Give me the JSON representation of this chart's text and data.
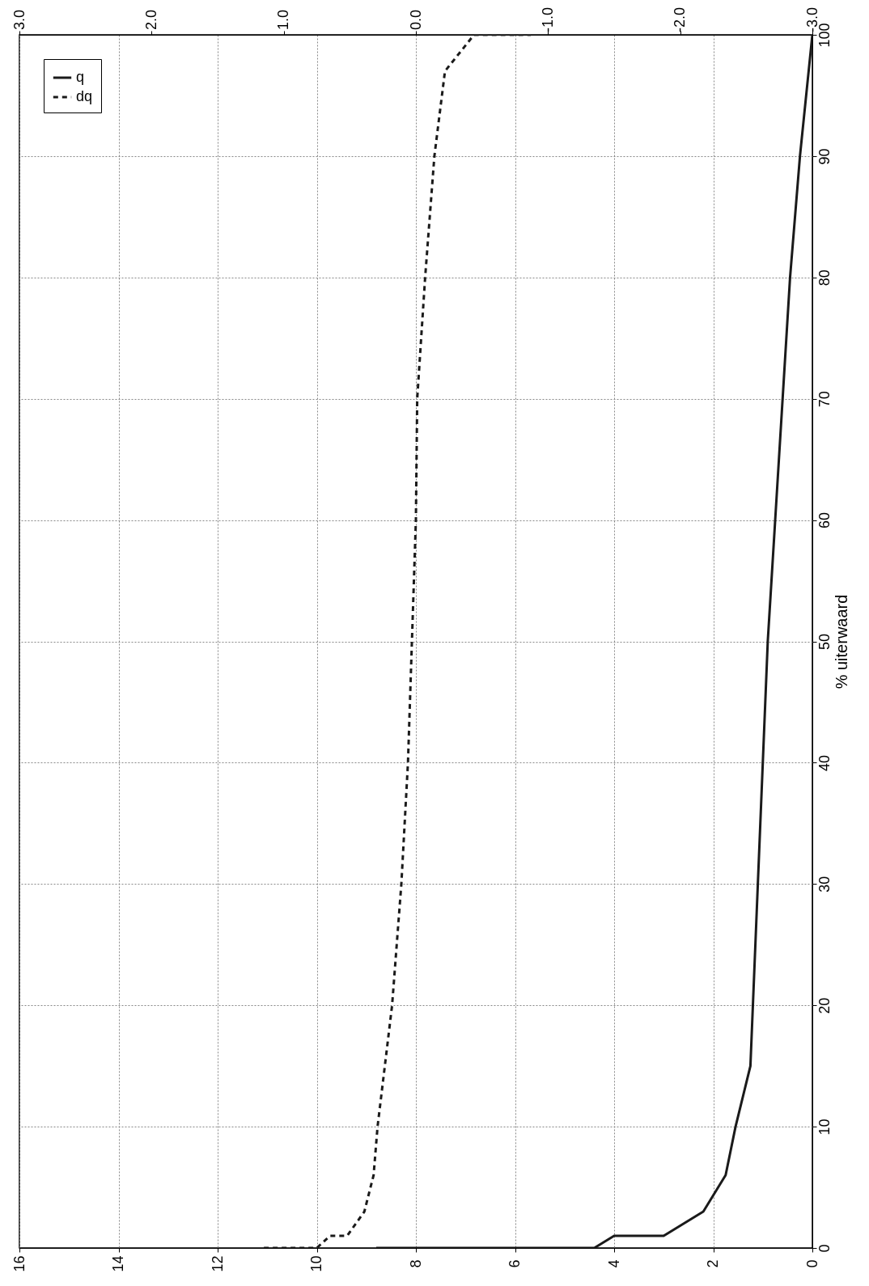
{
  "chart_data": {
    "type": "line",
    "ylabel": "% uiterwaard",
    "ylim": [
      0,
      100
    ],
    "yticks": [
      0,
      10,
      20,
      30,
      40,
      50,
      60,
      70,
      80,
      90,
      100
    ],
    "xlim": [
      16,
      0
    ],
    "xticks": [
      0,
      2,
      4,
      6,
      8,
      10,
      12,
      14,
      16
    ],
    "x2lim": [
      3,
      -3
    ],
    "x2ticks": [
      {
        "value": -3,
        "label": "-3.0"
      },
      {
        "value": -2,
        "label": "-2.0"
      },
      {
        "value": -1,
        "label": "-1.0"
      },
      {
        "value": 0,
        "label": "0.0"
      },
      {
        "value": 1,
        "label": "1.0"
      },
      {
        "value": 2,
        "label": "2.0"
      },
      {
        "value": 3,
        "label": "3.0"
      }
    ],
    "grid": true,
    "legend": "top left",
    "marker": "none",
    "series": [
      {
        "name": "q",
        "color": "#1a1a1a",
        "line_style": "solid",
        "x": [
          8.8,
          4.4,
          4.0,
          3.0,
          2.2,
          1.75,
          1.55,
          1.25,
          1.2,
          1.1,
          1.0,
          0.9,
          0.75,
          0.6,
          0.45,
          0.25,
          0
        ],
        "values": [
          0,
          0,
          1,
          1,
          3,
          6,
          10,
          15,
          20,
          30,
          40,
          50,
          60,
          70,
          80,
          90,
          100
        ]
      },
      {
        "name": "dq",
        "color": "#1a1a1a",
        "line_style": "dashed",
        "axis": "x2",
        "x": [
          1.15,
          0.75,
          0.65,
          0.52,
          0.39,
          0.32,
          0.29,
          0.18,
          0.11,
          0.06,
          0.03,
          0,
          -0.01,
          -0.07,
          -0.14,
          -0.22,
          -0.44,
          -0.87
        ],
        "values": [
          0,
          0,
          1,
          1,
          3,
          6,
          10,
          20,
          30,
          40,
          50,
          60,
          70,
          80,
          90,
          97,
          100,
          100
        ]
      }
    ]
  }
}
